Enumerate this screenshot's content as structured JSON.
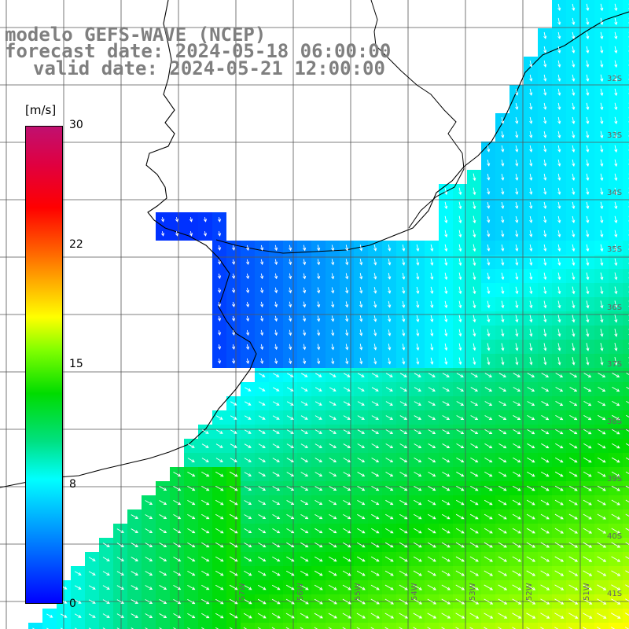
{
  "header": {
    "model": "modelo GEFS-WAVE (NCEP)",
    "forecast": "forecast date: 2024-05-18 06:00:00",
    "valid": "valid date: 2024-05-21 12:00:00"
  },
  "colorbar": {
    "unit": "[m/s]",
    "ticks": [
      "30",
      "22",
      "15",
      "8",
      "0"
    ]
  },
  "lat_labels": [
    "32S",
    "33S",
    "34S",
    "35S",
    "36S",
    "37S",
    "38S",
    "39S",
    "40S",
    "41S"
  ],
  "lon_labels": [
    "57W",
    "56W",
    "55W",
    "54W",
    "53W",
    "52W",
    "51W"
  ],
  "colors": {
    "land": "#ffffff",
    "coast": "#000000",
    "grid": "#555555",
    "arrows": "#ffffff",
    "label_gray": "#7f7f7f"
  }
}
